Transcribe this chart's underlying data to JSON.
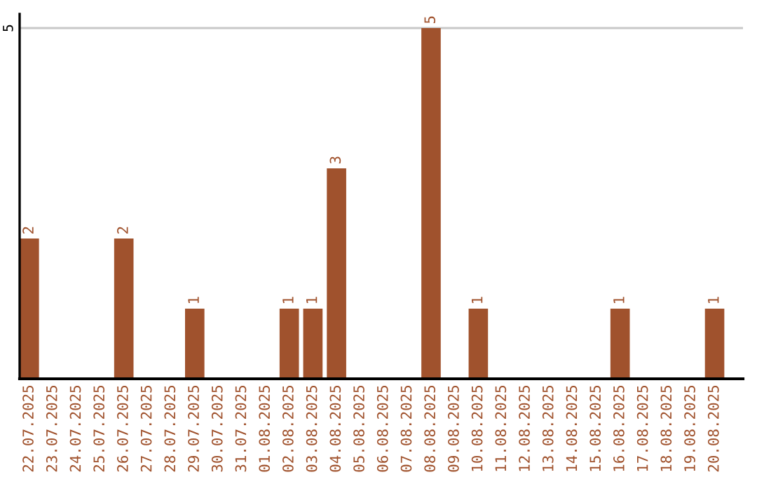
{
  "chart_data": {
    "type": "bar",
    "categories": [
      "22.07.2025",
      "23.07.2025",
      "24.07.2025",
      "25.07.2025",
      "26.07.2025",
      "27.07.2025",
      "28.07.2025",
      "29.07.2025",
      "30.07.2025",
      "31.07.2025",
      "01.08.2025",
      "02.08.2025",
      "03.08.2025",
      "04.08.2025",
      "05.08.2025",
      "06.08.2025",
      "07.08.2025",
      "08.08.2025",
      "09.08.2025",
      "10.08.2025",
      "11.08.2025",
      "12.08.2025",
      "13.08.2025",
      "14.08.2025",
      "15.08.2025",
      "16.08.2025",
      "17.08.2025",
      "18.08.2025",
      "19.08.2025",
      "20.08.2025"
    ],
    "values": [
      2,
      0,
      0,
      0,
      2,
      0,
      0,
      1,
      0,
      0,
      0,
      1,
      1,
      3,
      0,
      0,
      0,
      5,
      0,
      1,
      0,
      0,
      0,
      0,
      0,
      1,
      0,
      0,
      0,
      1
    ],
    "value_labels": [
      "2",
      null,
      null,
      null,
      "2",
      null,
      null,
      "1",
      null,
      null,
      null,
      "1",
      "1",
      "3",
      null,
      null,
      null,
      "5",
      null,
      "1",
      null,
      null,
      null,
      null,
      null,
      "1",
      null,
      null,
      null,
      "1"
    ],
    "color": "#a0522d",
    "ylim": [
      0,
      5.2
    ],
    "yticks": [
      5
    ],
    "grid": "y"
  }
}
